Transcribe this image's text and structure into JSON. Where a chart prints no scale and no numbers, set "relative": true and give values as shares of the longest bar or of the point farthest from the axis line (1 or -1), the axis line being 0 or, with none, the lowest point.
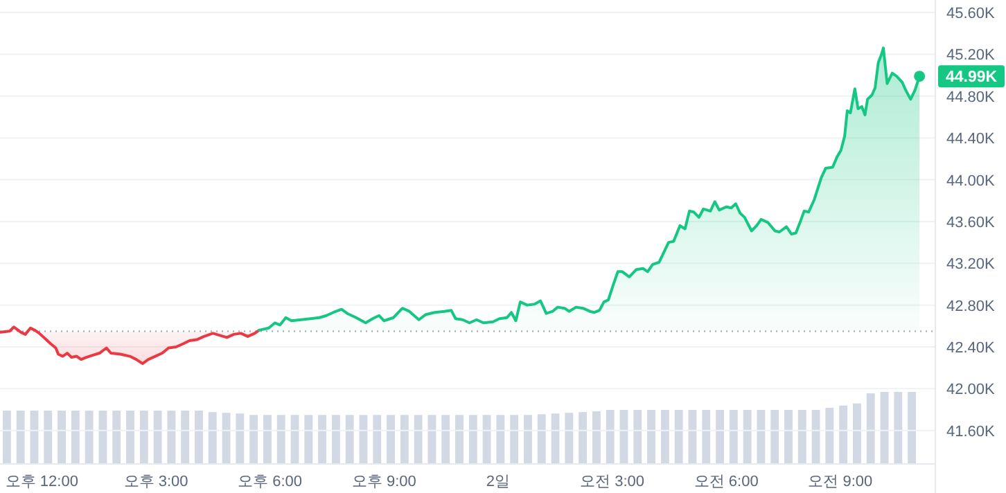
{
  "chart_data": [
    {
      "type": "line",
      "series": [
        {
          "type": "area",
          "color": "#ea3943",
          "x": [
            "--01-01T10:55",
            "--01-01T11:09",
            "--01-01T11:16",
            "--01-01T11:27",
            "--01-01T11:34",
            "--01-01T11:42",
            "--01-01T11:49",
            "--01-01T11:56",
            "--01-01T12:07",
            "--01-01T12:14",
            "--01-01T12:22",
            "--01-01T12:26",
            "--01-01T12:33",
            "--01-01T12:40",
            "--01-01T12:47",
            "--01-01T12:55",
            "--01-01T13:02",
            "--01-01T13:10",
            "--01-01T13:20",
            "--01-01T13:31",
            "--01-01T13:42",
            "--01-01T13:49",
            "--01-01T14:04",
            "--01-01T14:19",
            "--01-01T14:29",
            "--01-01T14:39",
            "--01-01T14:48",
            "--01-01T14:59",
            "--01-01T15:10",
            "--01-01T15:20",
            "--01-01T15:32",
            "--01-01T15:43",
            "--01-01T15:53",
            "--01-01T16:05",
            "--01-01T16:16",
            "--01-01T16:30",
            "--01-01T16:41",
            "--01-01T16:52",
            "--01-01T17:03",
            "--01-01T17:14",
            "--01-01T17:25",
            "--01-01T17:36",
            "--01-01T17:43"
          ],
          "values": [
            42.54,
            42.55,
            42.59,
            42.54,
            42.52,
            42.58,
            42.56,
            42.53,
            42.47,
            42.43,
            42.39,
            42.33,
            42.31,
            42.34,
            42.3,
            42.31,
            42.28,
            42.3,
            42.32,
            42.34,
            42.39,
            42.34,
            42.33,
            42.31,
            42.28,
            42.24,
            42.28,
            42.31,
            42.34,
            42.39,
            42.4,
            42.43,
            42.46,
            42.47,
            42.5,
            42.53,
            42.51,
            42.49,
            42.52,
            42.53,
            42.5,
            42.53,
            42.56
          ]
        },
        {
          "type": "area",
          "color": "#16c784",
          "x": [
            "--01-01T17:43",
            "--01-01T17:58",
            "--01-01T18:08",
            "--01-01T18:16",
            "--01-01T18:25",
            "--01-01T18:34",
            "--01-01T18:49",
            "--01-01T19:04",
            "--01-01T19:18",
            "--01-01T19:29",
            "--01-01T19:40",
            "--01-01T19:53",
            "--01-01T20:02",
            "--01-01T20:16",
            "--01-01T20:31",
            "--01-01T20:42",
            "--01-01T20:52",
            "--01-01T21:00",
            "--01-01T21:15",
            "--01-01T21:29",
            "--01-01T21:40",
            "--01-01T21:55",
            "--01-01T22:06",
            "--01-01T22:20",
            "--01-01T22:35",
            "--01-01T22:46",
            "--01-01T22:53",
            "--01-01T23:04",
            "--01-01T23:15",
            "--01-01T23:26",
            "--01-01T23:37",
            "--01-01T23:52",
            "--01-02T00:02",
            "--01-02T00:14",
            "--01-02T00:21",
            "--01-02T00:28",
            "--01-02T00:35",
            "--01-02T00:46",
            "--01-02T00:58",
            "--01-02T01:07",
            "--01-02T01:16",
            "--01-02T01:26",
            "--01-02T01:34",
            "--01-02T01:45",
            "--01-02T01:52",
            "--01-02T02:03",
            "--01-02T02:14",
            "--01-02T02:25",
            "--01-02T02:32",
            "--01-02T02:40",
            "--01-02T02:47",
            "--01-02T02:54",
            "--01-02T03:01",
            "--01-02T03:09",
            "--01-02T03:16",
            "--01-02T03:27",
            "--01-02T03:38",
            "--01-02T03:49",
            "--01-02T03:56",
            "--01-02T04:04",
            "--01-02T04:14",
            "--01-02T04:22",
            "--01-02T04:29",
            "--01-02T04:37",
            "--01-02T04:47",
            "--01-02T04:55",
            "--01-02T05:02",
            "--01-02T05:09",
            "--01-02T05:17",
            "--01-02T05:24",
            "--01-02T05:35",
            "--01-02T05:42",
            "--01-02T05:49",
            "--01-02T06:00",
            "--01-02T06:08",
            "--01-02T06:15",
            "--01-02T06:22",
            "--01-02T06:29",
            "--01-02T06:40",
            "--01-02T06:48",
            "--01-02T06:55",
            "--01-02T07:06",
            "--01-02T07:17",
            "--01-02T07:24",
            "--01-02T07:35",
            "--01-02T07:43",
            "--01-02T07:50",
            "--01-02T07:57",
            "--01-02T08:03",
            "--01-02T08:10",
            "--01-02T08:19",
            "--01-02T08:30",
            "--01-02T08:37",
            "--01-02T08:48",
            "--01-02T08:55",
            "--01-02T09:01",
            "--01-02T09:07",
            "--01-02T09:11",
            "--01-02T09:16",
            "--01-02T09:23",
            "--01-02T09:28",
            "--01-02T09:34",
            "--01-02T09:39",
            "--01-02T09:43",
            "--01-02T09:50",
            "--01-02T09:55",
            "--01-02T10:00",
            "--01-02T10:05",
            "--01-02T10:08",
            "--01-02T10:14",
            "--01-02T10:22",
            "--01-02T10:29",
            "--01-02T10:38",
            "--01-02T10:43",
            "--01-02T10:51",
            "--01-02T10:58",
            "--01-02T11:05"
          ],
          "values": [
            42.56,
            42.58,
            42.63,
            42.61,
            42.68,
            42.65,
            42.66,
            42.67,
            42.68,
            42.7,
            42.73,
            42.76,
            42.72,
            42.68,
            42.63,
            42.67,
            42.7,
            42.65,
            42.68,
            42.77,
            42.74,
            42.66,
            42.71,
            42.73,
            42.74,
            42.75,
            42.67,
            42.66,
            42.63,
            42.66,
            42.63,
            42.64,
            42.67,
            42.68,
            42.73,
            42.65,
            42.83,
            42.8,
            42.81,
            42.84,
            42.72,
            42.74,
            42.78,
            42.77,
            42.74,
            42.78,
            42.77,
            42.74,
            42.73,
            42.75,
            42.83,
            42.85,
            42.98,
            43.12,
            43.12,
            43.07,
            43.14,
            43.15,
            43.12,
            43.19,
            43.21,
            43.31,
            43.4,
            43.41,
            43.56,
            43.53,
            43.7,
            43.69,
            43.64,
            43.72,
            43.7,
            43.79,
            43.71,
            43.74,
            43.73,
            43.77,
            43.68,
            43.64,
            43.51,
            43.56,
            43.62,
            43.59,
            43.51,
            43.5,
            43.55,
            43.48,
            43.49,
            43.6,
            43.7,
            43.69,
            43.81,
            44.02,
            44.11,
            44.12,
            44.22,
            44.28,
            44.42,
            44.66,
            44.64,
            44.87,
            44.68,
            44.7,
            44.62,
            44.77,
            44.81,
            44.88,
            45.12,
            45.2,
            45.26,
            44.92,
            45.02,
            44.99,
            44.93,
            44.86,
            44.77,
            44.86,
            44.99
          ]
        }
      ],
      "xlim": [
        "--01-01T10:54",
        "--01-02T11:30"
      ],
      "xticks": [
        {
          "value": "--01-01T12:00",
          "label": "오후 12:00"
        },
        {
          "value": "--01-01T15:00",
          "label": "오후 3:00"
        },
        {
          "value": "--01-01T18:00",
          "label": "오후 6:00"
        },
        {
          "value": "--01-01T21:00",
          "label": "오후 9:00"
        },
        {
          "value": "--01-02T00:00",
          "label": "2일"
        },
        {
          "value": "--01-02T03:00",
          "label": "오전 3:00"
        },
        {
          "value": "--01-02T06:00",
          "label": "오전 6:00"
        },
        {
          "value": "--01-02T09:00",
          "label": "오전 9:00"
        }
      ],
      "ylim": [
        41.28,
        45.72
      ],
      "yticks": [
        {
          "value": 41.6,
          "label": "41.60K"
        },
        {
          "value": 42.0,
          "label": "42.00K"
        },
        {
          "value": 42.4,
          "label": "42.40K"
        },
        {
          "value": 42.8,
          "label": "42.80K"
        },
        {
          "value": 43.2,
          "label": "43.20K"
        },
        {
          "value": 43.6,
          "label": "43.60K"
        },
        {
          "value": 44.0,
          "label": "44.00K"
        },
        {
          "value": 44.4,
          "label": "44.40K"
        },
        {
          "value": 44.8,
          "label": "44.80K"
        },
        {
          "value": 45.2,
          "label": "45.20K"
        },
        {
          "value": 45.6,
          "label": "45.60K"
        }
      ],
      "grid": "y",
      "ref_lines": [
        {
          "axis": "y",
          "value": 42.55,
          "color": "#a6adbb",
          "line_style": "dotted"
        }
      ],
      "annotations": [
        {
          "text": "44.99K",
          "x": "--01-02T11:05",
          "y": 44.99
        }
      ]
    },
    {
      "type": "bar",
      "relative": true,
      "color": "#d3d9e4",
      "categories": [
        null,
        null,
        null,
        null,
        null,
        null,
        null,
        null,
        null,
        null,
        null,
        null,
        null,
        null,
        null,
        null,
        null,
        null,
        null,
        null,
        null,
        null,
        null,
        null,
        null,
        null,
        null,
        null,
        null,
        null,
        null,
        null,
        null,
        null,
        null,
        null,
        null,
        null,
        null,
        null,
        null,
        null,
        null,
        null,
        null,
        null,
        null,
        null,
        null,
        null,
        null,
        null,
        null,
        null,
        null,
        null,
        null,
        null,
        null,
        null,
        null,
        null,
        null,
        null,
        null,
        null,
        null
      ],
      "values": [
        0.74,
        0.74,
        0.74,
        0.74,
        0.74,
        0.74,
        0.74,
        0.74,
        0.74,
        0.74,
        0.74,
        0.74,
        0.74,
        0.74,
        0.74,
        0.72,
        0.71,
        0.7,
        0.68,
        0.68,
        0.68,
        0.68,
        0.68,
        0.68,
        0.68,
        0.68,
        0.68,
        0.68,
        0.68,
        0.68,
        0.68,
        0.68,
        0.68,
        0.68,
        0.68,
        0.68,
        0.68,
        0.68,
        0.68,
        0.69,
        0.7,
        0.71,
        0.72,
        0.73,
        0.75,
        0.75,
        0.75,
        0.75,
        0.75,
        0.75,
        0.75,
        0.75,
        0.75,
        0.75,
        0.75,
        0.75,
        0.75,
        0.75,
        0.75,
        0.75,
        0.78,
        0.81,
        0.84,
        0.98,
        1,
        1,
        1
      ]
    }
  ]
}
